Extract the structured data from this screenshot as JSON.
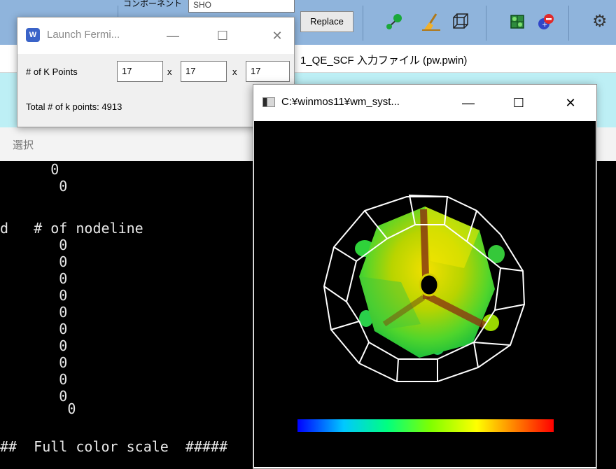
{
  "background_app": {
    "toolbar": {
      "partial_left_text": "   ",
      "partial_label": "コンポーネント",
      "search_value": "SHO",
      "replace_label": "Replace",
      "icons": [
        "atom-add-icon",
        "broom-icon",
        "cube-outline-icon",
        "crystal-icon",
        "atom-remove-icon",
        "gear-icon"
      ]
    },
    "window_title": "1_QE_SCF 入力ファイル (pw.pwin)",
    "select_label": "選択",
    "console_lines": [
      "      0",
      "       0",
      "",
      "d   # of nodeline",
      "       0",
      "       0",
      "       0",
      "       0",
      "       0",
      "       0",
      "       0",
      "       0",
      "       0",
      "       0",
      "        0",
      "",
      "##  Full color scale  #####"
    ]
  },
  "fermi_dialog": {
    "title": "Launch Fermi...",
    "app_icon_text": "W",
    "minimize_glyph": "—",
    "maximize_glyph": "☐",
    "close_glyph": "✕",
    "kpoints_label": "# of K Points",
    "kx": "17",
    "ky": "17",
    "kz": "17",
    "times": "x",
    "total_label": "Total # of k points: 4913"
  },
  "viewer_window": {
    "title": "C:¥winmos11¥wm_syst...",
    "minimize_glyph": "—",
    "maximize_glyph": "☐",
    "close_glyph": "✕",
    "colors": {
      "background": "#000000",
      "wireframe": "#ffffff",
      "surface_center": "#c8d400",
      "surface_edge": "#2bd130",
      "band": "#8a3a10"
    },
    "color_scale": [
      "#0000ff",
      "#00c8ff",
      "#00ff80",
      "#80ff00",
      "#ffff00",
      "#ff8000",
      "#ff0000"
    ]
  }
}
